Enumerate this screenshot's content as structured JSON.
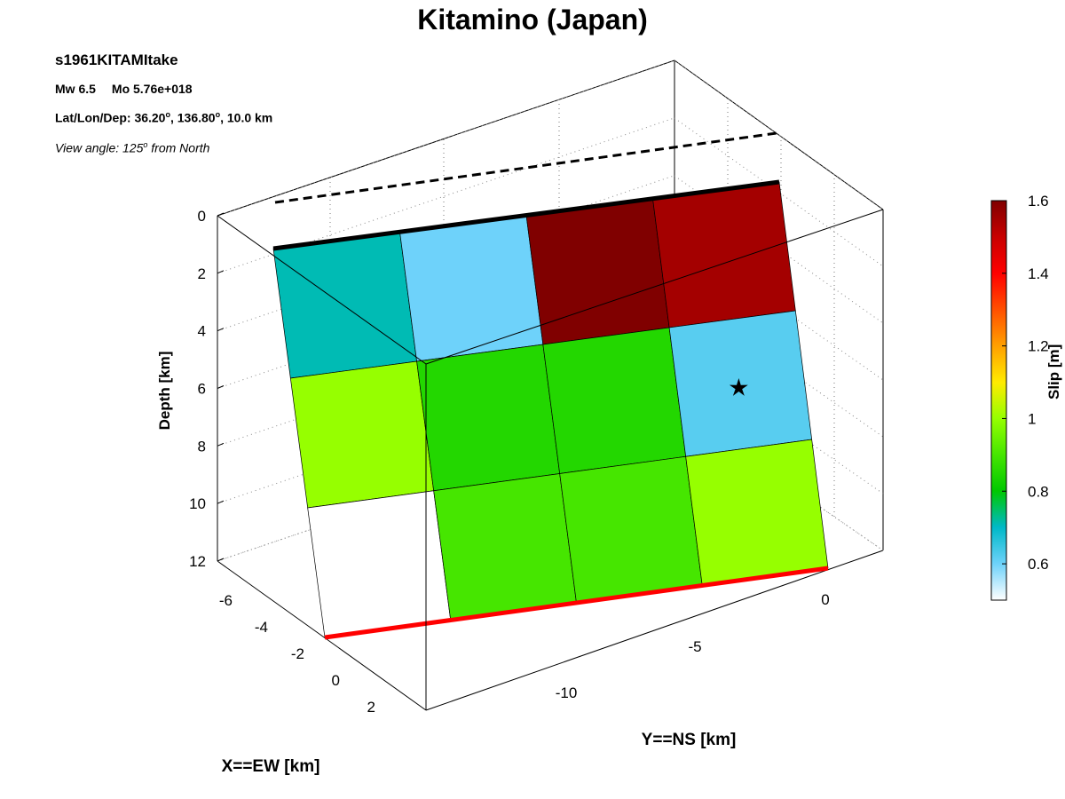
{
  "title": "Kitamino (Japan)",
  "info": {
    "event_id": "s1961KITAMItake",
    "mw_label": "Mw 6.5",
    "mo_label": "Mo 5.76e+018",
    "latlondep_prefix": "Lat/Lon/Dep: ",
    "lat": "36.20",
    "lon": "136.80",
    "dep": "10.0 km",
    "view_prefix": "View angle: 125",
    "view_suffix": " from North",
    "degree_mark": "o"
  },
  "chart_data": {
    "type": "heatmap",
    "title": "Kitamino (Japan)",
    "zlabel": "Depth [km]",
    "xlabel": "X==EW [km]",
    "ylabel": "Y==NS [km]",
    "depth_ticks": [
      "0",
      "2",
      "4",
      "6",
      "8",
      "10",
      "12"
    ],
    "ew_ticks": [
      "-6",
      "-4",
      "-2",
      "0",
      "2"
    ],
    "ns_ticks": [
      "-10",
      "-5",
      "0"
    ],
    "view_angle_deg_from_north": 125,
    "grid": true,
    "fault_patches": {
      "rows_top_to_bottom": 3,
      "cols": 4,
      "slip_m": [
        [
          0.71,
          0.6,
          1.6,
          1.55
        ],
        [
          1.0,
          0.85,
          0.85,
          0.62
        ],
        [
          0.5,
          0.9,
          0.9,
          1.0
        ]
      ],
      "hypocenter": {
        "row": 1,
        "col": 3,
        "symbol": "star"
      }
    },
    "colorbar": {
      "label": "Slip [m]",
      "range": [
        0.5,
        1.6
      ],
      "ticks": [
        "0.6",
        "0.8",
        "1",
        "1.2",
        "1.4",
        "1.6"
      ],
      "colormap": "white-cyan-green-yellow-red-darkred"
    },
    "annotations": {
      "fault_top_edge_color": "#000000",
      "fault_bottom_edge_color": "#ff0000",
      "surface_trace_style": "dashed"
    }
  }
}
